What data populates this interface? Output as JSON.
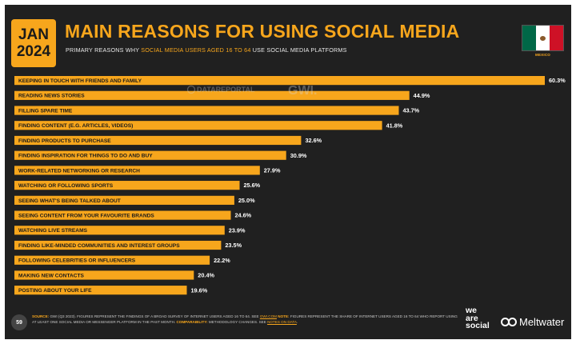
{
  "badge": {
    "month": "JAN",
    "year": "2024"
  },
  "title": "MAIN REASONS FOR USING SOCIAL MEDIA",
  "subtitle": {
    "prefix": "PRIMARY REASONS WHY ",
    "highlight": "SOCIAL MEDIA USERS AGED 16 TO 64",
    "suffix": " USE SOCIAL MEDIA PLATFORMS"
  },
  "country": {
    "name": "MEXICO",
    "flag_colors": [
      "#006847",
      "#ffffff",
      "#ce1126"
    ]
  },
  "watermark": {
    "datareportal": "DATAREPORTAL",
    "gwi": "GWI."
  },
  "chart_data": {
    "type": "bar",
    "orientation": "horizontal",
    "categories": [
      "KEEPING IN TOUCH WITH FRIENDS AND FAMILY",
      "READING NEWS STORIES",
      "FILLING SPARE TIME",
      "FINDING CONTENT (E.G. ARTICLES, VIDEOS)",
      "FINDING PRODUCTS TO PURCHASE",
      "FINDING INSPIRATION FOR THINGS TO DO AND BUY",
      "WORK-RELATED NETWORKING OR RESEARCH",
      "WATCHING OR FOLLOWING SPORTS",
      "SEEING WHAT'S BEING TALKED ABOUT",
      "SEEING CONTENT FROM YOUR FAVOURITE BRANDS",
      "WATCHING LIVE STREAMS",
      "FINDING LIKE-MINDED COMMUNITIES AND INTEREST GROUPS",
      "FOLLOWING CELEBRITIES OR INFLUENCERS",
      "MAKING NEW CONTACTS",
      "POSTING ABOUT YOUR LIFE"
    ],
    "values": [
      60.3,
      44.9,
      43.7,
      41.8,
      32.6,
      30.9,
      27.9,
      25.6,
      25.0,
      24.6,
      23.9,
      23.5,
      22.2,
      20.4,
      19.6
    ],
    "value_labels": [
      "60.3%",
      "44.9%",
      "43.7%",
      "41.8%",
      "32.6%",
      "30.9%",
      "27.9%",
      "25.6%",
      "25.0%",
      "24.6%",
      "23.9%",
      "23.5%",
      "22.2%",
      "20.4%",
      "19.6%"
    ],
    "unit": "%",
    "bar_color": "#f7a61c",
    "grid": false
  },
  "footer": {
    "page": "59",
    "source_key": "SOURCE:",
    "source_text": " GWI (Q3 2023). FIGURES REPRESENT THE FINDINGS OF A BROAD SURVEY OF INTERNET USERS AGED 16 TO 64. SEE ",
    "source_link": "GWI.COM",
    "notes_key": " NOTE:",
    "notes_text": " FIGURES REPRESENT THE SHARE OF INTERNET USERS AGED 16 TO 64 WHO REPORT USING AT LEAST ONE SOCIAL MEDIA OR MESSENGER PLATFORM IN THE PAST MONTH. ",
    "comp_key": "COMPARABILITY:",
    "comp_text": " METHODOLOGY CHANGES. SEE ",
    "comp_link": "NOTES ON DATA",
    "comp_end": "."
  },
  "logos": {
    "we_are_social": [
      "we",
      "are",
      "social"
    ],
    "meltwater": "Meltwater"
  }
}
